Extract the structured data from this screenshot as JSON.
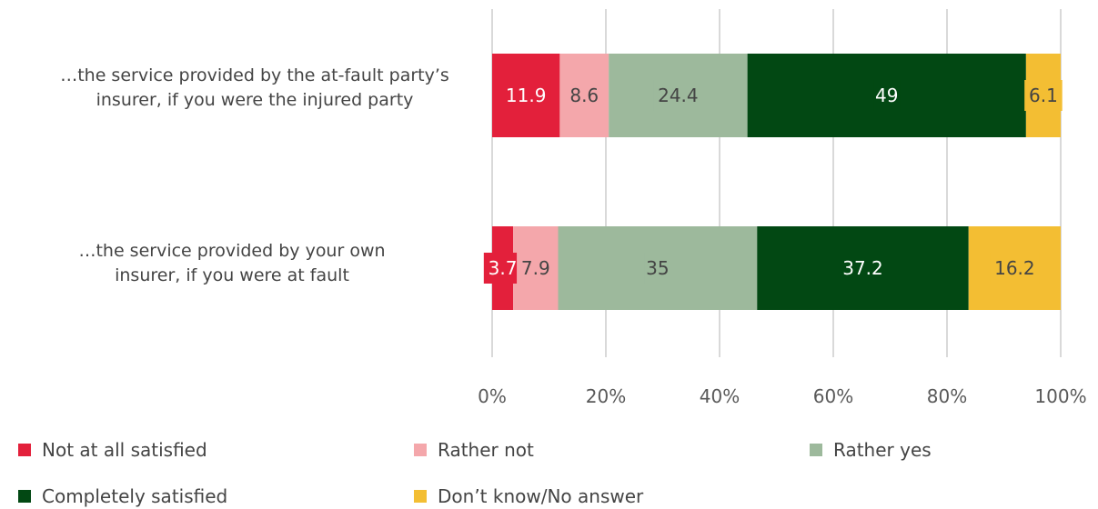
{
  "chart_data": {
    "type": "bar",
    "orientation": "horizontal",
    "stacked": true,
    "categories": [
      "…the service provided by the at-fault party’s insurer, if you were the injured party",
      "…the service provided by your own insurer, if you were at fault"
    ],
    "category_lines": [
      [
        "…the service provided by the at-fault party’s",
        "insurer, if you were the injured party"
      ],
      [
        "…the service provided by your own",
        "insurer, if you were at fault"
      ]
    ],
    "series": [
      {
        "name": "Not at all satisfied",
        "values": [
          11.9,
          3.7
        ],
        "labels": [
          "11.9",
          "3.7"
        ],
        "color": "#e3203b",
        "label_color": "#ffffff"
      },
      {
        "name": "Rather not",
        "values": [
          8.6,
          7.9
        ],
        "labels": [
          "8.6",
          "7.9"
        ],
        "color": "#f4a7ab",
        "label_color": "#444444"
      },
      {
        "name": "Rather yes",
        "values": [
          24.4,
          35
        ],
        "labels": [
          "24.4",
          "35"
        ],
        "color": "#9db99c",
        "label_color": "#444444"
      },
      {
        "name": "Completely satisfied",
        "values": [
          49,
          37.2
        ],
        "labels": [
          "49",
          "37.2"
        ],
        "color": "#024813",
        "label_color": "#ffffff"
      },
      {
        "name": "Don’t know/No answer",
        "values": [
          6.1,
          16.2
        ],
        "labels": [
          "6.1",
          "16.2"
        ],
        "color": "#f3be33",
        "label_color": "#444444"
      }
    ],
    "xlim": [
      0,
      100
    ],
    "x_ticks": [
      "0%",
      "20%",
      "40%",
      "60%",
      "80%",
      "100%"
    ],
    "grid": true,
    "legend_position": "bottom"
  }
}
